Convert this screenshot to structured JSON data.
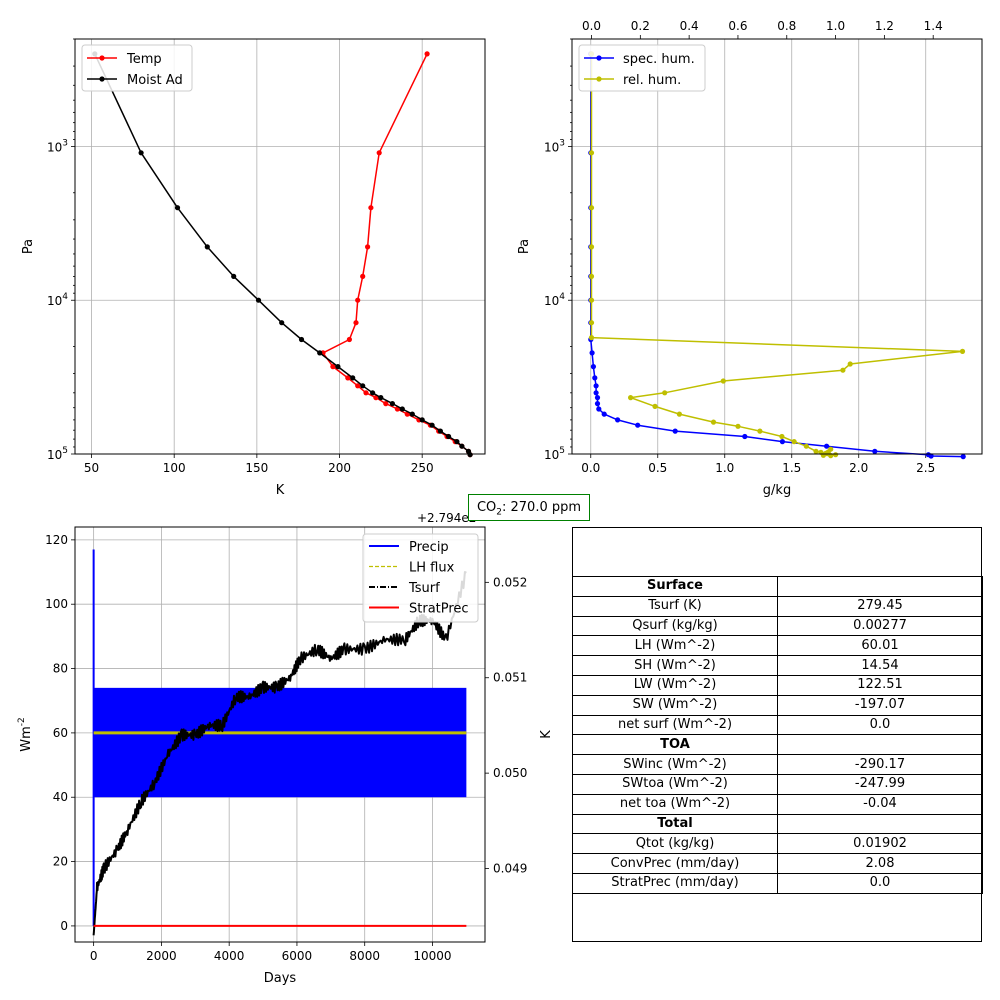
{
  "chart_data": [
    {
      "type": "line",
      "yscale": "log",
      "yinvert": true,
      "xlabel": "K",
      "ylabel": "Pa",
      "xlim": [
        40,
        288
      ],
      "ylim": [
        100000,
        200
      ],
      "xticks": [
        50,
        100,
        150,
        200,
        250
      ],
      "xtick_labels": [
        "50",
        "100",
        "150",
        "200",
        "250"
      ],
      "yticks": [
        1000,
        10000,
        100000
      ],
      "ytick_labels": [
        "10^3",
        "10^4",
        "10^5"
      ],
      "grid": true,
      "legend_position": "upper-left",
      "series": [
        {
          "name": "Temp",
          "color": "#ff0000",
          "points": [
            [
              253,
              250
            ],
            [
              224,
              1100
            ],
            [
              219,
              2500
            ],
            [
              217,
              4500
            ],
            [
              214,
              7000
            ],
            [
              211,
              10000
            ],
            [
              210,
              14000
            ],
            [
              206,
              18000
            ],
            [
              190,
              22000
            ],
            [
              196,
              27000
            ],
            [
              205,
              32000
            ],
            [
              211,
              36000
            ],
            [
              216,
              40000
            ],
            [
              222,
              43000
            ],
            [
              228,
              47000
            ],
            [
              235,
              51000
            ],
            [
              241,
              55000
            ],
            [
              248,
              60000
            ],
            [
              255,
              65000
            ],
            [
              260,
              71000
            ],
            [
              265,
              77000
            ],
            [
              270,
              83000
            ],
            [
              274,
              89000
            ],
            [
              278,
              96000
            ],
            [
              279,
              101000
            ]
          ]
        },
        {
          "name": "Moist Ad",
          "color": "#000000",
          "points": [
            [
              52,
              250
            ],
            [
              80,
              1100
            ],
            [
              102,
              2500
            ],
            [
              120,
              4500
            ],
            [
              136,
              7000
            ],
            [
              151,
              10000
            ],
            [
              165,
              14000
            ],
            [
              177,
              18000
            ],
            [
              188,
              22000
            ],
            [
              199,
              27000
            ],
            [
              208,
              32000
            ],
            [
              214,
              36000
            ],
            [
              220,
              40000
            ],
            [
              225,
              43000
            ],
            [
              232,
              47000
            ],
            [
              238,
              51000
            ],
            [
              244,
              55000
            ],
            [
              250,
              60000
            ],
            [
              256,
              65000
            ],
            [
              261,
              71000
            ],
            [
              266,
              77000
            ],
            [
              271,
              83000
            ],
            [
              274,
              89000
            ],
            [
              278,
              96000
            ],
            [
              279,
              101000
            ]
          ]
        }
      ]
    },
    {
      "type": "line",
      "yscale": "log",
      "yinvert": true,
      "xlabel": "g/kg",
      "ylabel": "Pa",
      "xlim": [
        -0.14,
        2.92
      ],
      "ylim": [
        100000,
        200
      ],
      "xticks": [
        0.0,
        0.5,
        1.0,
        1.5,
        2.0,
        2.5
      ],
      "xtick_labels": [
        "0.0",
        "0.5",
        "1.0",
        "1.5",
        "2.0",
        "2.5"
      ],
      "top_xlim": [
        -0.08,
        1.6
      ],
      "top_xticks": [
        0.0,
        0.2,
        0.4,
        0.6,
        0.8,
        1.0,
        1.2,
        1.4
      ],
      "top_xtick_labels": [
        "0.0",
        "0.2",
        "0.4",
        "0.6",
        "0.8",
        "1.0",
        "1.2",
        "1.4"
      ],
      "yticks": [
        1000,
        10000,
        100000
      ],
      "ytick_labels": [
        "10^3",
        "10^4",
        "10^5"
      ],
      "grid": true,
      "legend_position": "upper-left",
      "series": [
        {
          "name": "spec. hum.",
          "color": "#0000ff",
          "axis": "bottom",
          "points": [
            [
              0.0,
              250
            ],
            [
              0.0,
              1100
            ],
            [
              0.0,
              2500
            ],
            [
              0.0,
              4500
            ],
            [
              0.0,
              7000
            ],
            [
              0.0,
              10000
            ],
            [
              0.0,
              14000
            ],
            [
              0.0,
              18000
            ],
            [
              0.01,
              22000
            ],
            [
              0.02,
              27000
            ],
            [
              0.03,
              32000
            ],
            [
              0.04,
              36000
            ],
            [
              0.04,
              40000
            ],
            [
              0.05,
              43000
            ],
            [
              0.05,
              47000
            ],
            [
              0.06,
              51000
            ],
            [
              0.1,
              55000
            ],
            [
              0.2,
              60000
            ],
            [
              0.35,
              65000
            ],
            [
              0.63,
              71000
            ],
            [
              1.15,
              77000
            ],
            [
              1.43,
              83000
            ],
            [
              1.76,
              89000
            ],
            [
              2.12,
              96000
            ],
            [
              2.52,
              101000
            ],
            [
              2.54,
              103000
            ],
            [
              2.78,
              104000
            ]
          ]
        },
        {
          "name": "rel. hum.",
          "color": "#bfbf00",
          "axis": "top",
          "points": [
            [
              0.0,
              250
            ],
            [
              0.0,
              1100
            ],
            [
              0.0,
              2500
            ],
            [
              0.0,
              4500
            ],
            [
              0.0,
              7000
            ],
            [
              0.0,
              10000
            ],
            [
              0.0,
              14000
            ],
            [
              0.0,
              17500
            ],
            [
              1.52,
              21500
            ],
            [
              1.06,
              26000
            ],
            [
              1.03,
              28500
            ],
            [
              0.54,
              33500
            ],
            [
              0.3,
              40000
            ],
            [
              0.16,
              43000
            ],
            [
              0.26,
              49000
            ],
            [
              0.36,
              55000
            ],
            [
              0.5,
              62000
            ],
            [
              0.6,
              66000
            ],
            [
              0.69,
              71000
            ],
            [
              0.78,
              77000
            ],
            [
              0.83,
              83000
            ],
            [
              0.88,
              89000
            ],
            [
              0.92,
              96000
            ],
            [
              0.94,
              97500
            ],
            [
              0.96,
              99000
            ],
            [
              1.0,
              101000
            ],
            [
              0.98,
              102500
            ],
            [
              0.95,
              102000
            ],
            [
              0.97,
              97000
            ],
            [
              0.98,
              93000
            ]
          ]
        }
      ]
    },
    {
      "type": "line",
      "xlabel": "Days",
      "ylabel": "Wm^-2",
      "right_ylabel": "K",
      "right_offset_text": "+2.794e2",
      "xlim": [
        -550,
        11550
      ],
      "ylim": [
        -5,
        124
      ],
      "right_ylim": [
        0.04823,
        0.05258
      ],
      "xticks": [
        0,
        2000,
        4000,
        6000,
        8000,
        10000
      ],
      "xtick_labels": [
        "0",
        "2000",
        "4000",
        "6000",
        "8000",
        "10000"
      ],
      "yticks": [
        0,
        20,
        40,
        60,
        80,
        100,
        120
      ],
      "ytick_labels": [
        "0",
        "20",
        "40",
        "60",
        "80",
        "100",
        "120"
      ],
      "right_yticks": [
        0.049,
        0.05,
        0.051,
        0.052
      ],
      "right_ytick_labels": [
        "0.049",
        "0.050",
        "0.051",
        "0.052"
      ],
      "grid": true,
      "legend_position": "upper-right",
      "series": [
        {
          "name": "Precip",
          "color": "#0000ff",
          "style": "solid",
          "band_min": 40,
          "band_max": 74,
          "x_end": 11000,
          "initial_spike": 117
        },
        {
          "name": "LH flux",
          "color": "#bfbf00",
          "style": "dashed",
          "value": 60,
          "x_end": 11000
        },
        {
          "name": "Tsurf",
          "color": "#000000",
          "style": "dashdot",
          "axis": "right",
          "points": [
            [
              0,
              0.0483
            ],
            [
              100,
              0.0488
            ],
            [
              300,
              0.049
            ],
            [
              700,
              0.0492
            ],
            [
              1000,
              0.0494
            ],
            [
              1400,
              0.0497
            ],
            [
              1800,
              0.0499
            ],
            [
              2200,
              0.0502
            ],
            [
              2600,
              0.0504
            ],
            [
              3000,
              0.0504
            ],
            [
              3400,
              0.0505
            ],
            [
              3800,
              0.0505
            ],
            [
              4200,
              0.0508
            ],
            [
              4600,
              0.0508
            ],
            [
              5000,
              0.0509
            ],
            [
              5400,
              0.0509
            ],
            [
              5800,
              0.051
            ],
            [
              6100,
              0.0512
            ],
            [
              6600,
              0.0513
            ],
            [
              7000,
              0.0512
            ],
            [
              7400,
              0.0513
            ],
            [
              8000,
              0.0513
            ],
            [
              8600,
              0.0514
            ],
            [
              9200,
              0.0514
            ],
            [
              9600,
              0.0516
            ],
            [
              10000,
              0.0516
            ],
            [
              10400,
              0.0514
            ],
            [
              11000,
              0.0521
            ]
          ]
        },
        {
          "name": "StratPrec",
          "color": "#ff0000",
          "style": "solid",
          "value": 0,
          "x_end": 11000
        }
      ]
    },
    {
      "type": "table",
      "rows": [
        [
          "Surface",
          ""
        ],
        [
          "Tsurf (K)",
          "279.45"
        ],
        [
          "Qsurf (kg/kg)",
          "0.00277"
        ],
        [
          "LH (Wm^-2)",
          "60.01"
        ],
        [
          "SH (Wm^-2)",
          "14.54"
        ],
        [
          "LW (Wm^-2)",
          "122.51"
        ],
        [
          "SW (Wm^-2)",
          "-197.07"
        ],
        [
          "net surf (Wm^-2)",
          "0.0"
        ],
        [
          "TOA",
          ""
        ],
        [
          "SWinc (Wm^-2)",
          "-290.17"
        ],
        [
          "SWtoa (Wm^-2)",
          "-247.99"
        ],
        [
          "net toa (Wm^-2)",
          "-0.04"
        ],
        [
          "Total",
          ""
        ],
        [
          "Qtot (kg/kg)",
          "0.01902"
        ],
        [
          "ConvPrec (mm/day)",
          "2.08"
        ],
        [
          "StratPrec (mm/day)",
          "0.0"
        ]
      ],
      "section_rows": [
        0,
        8,
        12
      ]
    }
  ],
  "annotations": {
    "co2_prefix": "CO",
    "co2_sub": "2",
    "co2_suffix": ": 270.0 ppm",
    "co2_box_color": "#008000"
  }
}
